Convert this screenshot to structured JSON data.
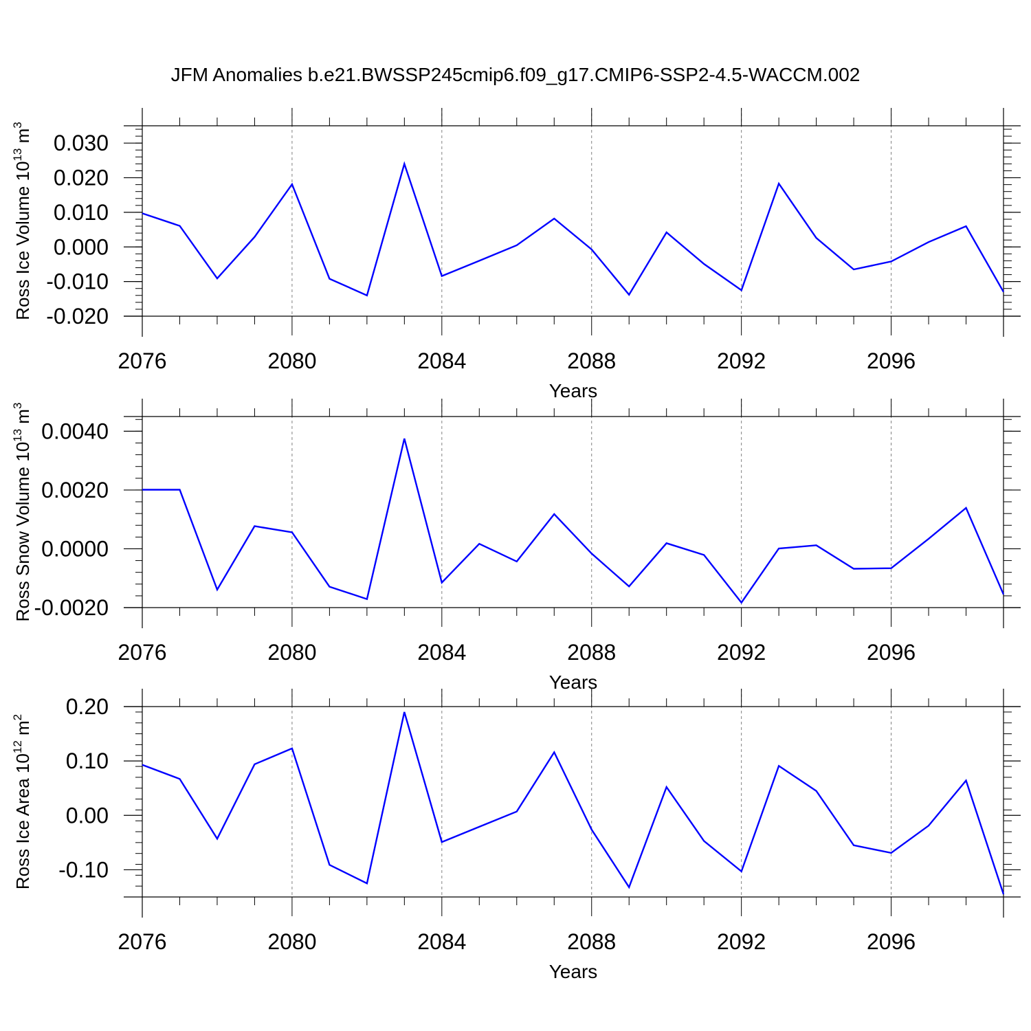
{
  "title": "JFM Anomalies b.e21.BWSSP245cmip6.f09_g17.CMIP6-SSP2-4.5-WACCM.002",
  "colors": {
    "line": "#0000ff",
    "axis": "#000000",
    "grid": "#808080"
  },
  "chart_data": [
    {
      "type": "line",
      "id": "ice-volume",
      "ylabel_main": "Ross Ice Volume 10",
      "ylabel_sup": "13",
      "ylabel_unit": "m",
      "ylabel_unit_sup": "3",
      "xlabel": "Years",
      "xlim": [
        2076,
        2099
      ],
      "ylim": [
        -0.02,
        0.035
      ],
      "yticks": [
        -0.02,
        -0.01,
        0.0,
        0.01,
        0.02,
        0.03
      ],
      "ytick_labels": [
        "-0.020",
        "-0.010",
        "0.000",
        "0.010",
        "0.020",
        "0.030"
      ],
      "xticks": [
        2076,
        2080,
        2084,
        2088,
        2092,
        2096
      ],
      "xtick_labels": [
        "2076",
        "2080",
        "2084",
        "2088",
        "2092",
        "2096"
      ],
      "x": [
        2076,
        2077,
        2078,
        2079,
        2080,
        2081,
        2082,
        2083,
        2084,
        2085,
        2086,
        2087,
        2088,
        2089,
        2090,
        2091,
        2092,
        2093,
        2094,
        2095,
        2096,
        2097,
        2098,
        2099
      ],
      "values": [
        0.0097,
        0.0061,
        -0.0091,
        0.0029,
        0.0181,
        -0.0092,
        -0.014,
        0.024,
        -0.0084,
        -0.004,
        0.0005,
        0.0082,
        -0.0007,
        -0.0138,
        0.0042,
        -0.0049,
        -0.0125,
        0.0183,
        0.0026,
        -0.0065,
        -0.0042,
        0.0014,
        0.006,
        -0.013
      ]
    },
    {
      "type": "line",
      "id": "snow-volume",
      "ylabel_main": "Ross Snow Volume 10",
      "ylabel_sup": "13",
      "ylabel_unit": "m",
      "ylabel_unit_sup": "3",
      "xlabel": "Years",
      "xlim": [
        2076,
        2099
      ],
      "ylim": [
        -0.002,
        0.0045
      ],
      "yticks": [
        -0.002,
        0.0,
        0.002,
        0.004
      ],
      "ytick_labels": [
        "-0.0020",
        "0.0000",
        "0.0020",
        "0.0040"
      ],
      "xticks": [
        2076,
        2080,
        2084,
        2088,
        2092,
        2096
      ],
      "xtick_labels": [
        "2076",
        "2080",
        "2084",
        "2088",
        "2092",
        "2096"
      ],
      "x": [
        2076,
        2077,
        2078,
        2079,
        2080,
        2081,
        2082,
        2083,
        2084,
        2085,
        2086,
        2087,
        2088,
        2089,
        2090,
        2091,
        2092,
        2093,
        2094,
        2095,
        2096,
        2097,
        2098,
        2099
      ],
      "values": [
        0.00201,
        0.00201,
        -0.00139,
        0.00077,
        0.00056,
        -0.00129,
        -0.00171,
        0.00375,
        -0.00115,
        0.00017,
        -0.00043,
        0.00118,
        -0.00016,
        -0.00128,
        0.00019,
        -0.00021,
        -0.00183,
        1e-05,
        0.00012,
        -0.00068,
        -0.00066,
        0.00034,
        0.00139,
        -0.00155
      ]
    },
    {
      "type": "line",
      "id": "ice-area",
      "ylabel_main": "Ross Ice Area 10",
      "ylabel_sup": "12",
      "ylabel_unit": "m",
      "ylabel_unit_sup": "2",
      "xlabel": "Years",
      "xlim": [
        2076,
        2099
      ],
      "ylim": [
        -0.15,
        0.2
      ],
      "yticks": [
        -0.1,
        0.0,
        0.1,
        0.2
      ],
      "ytick_labels": [
        "-0.10",
        "0.00",
        "0.10",
        "0.20"
      ],
      "xticks": [
        2076,
        2080,
        2084,
        2088,
        2092,
        2096
      ],
      "xtick_labels": [
        "2076",
        "2080",
        "2084",
        "2088",
        "2092",
        "2096"
      ],
      "x": [
        2076,
        2077,
        2078,
        2079,
        2080,
        2081,
        2082,
        2083,
        2084,
        2085,
        2086,
        2087,
        2088,
        2089,
        2090,
        2091,
        2092,
        2093,
        2094,
        2095,
        2096,
        2097,
        2098,
        2099
      ],
      "values": [
        0.093,
        0.067,
        -0.043,
        0.094,
        0.123,
        -0.091,
        -0.125,
        0.19,
        -0.049,
        -0.021,
        0.007,
        0.116,
        -0.026,
        -0.132,
        0.052,
        -0.047,
        -0.103,
        0.091,
        0.045,
        -0.055,
        -0.069,
        -0.019,
        0.064,
        -0.145
      ]
    }
  ]
}
